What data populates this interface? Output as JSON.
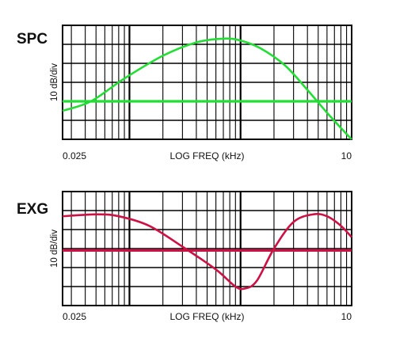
{
  "chart_data": [
    {
      "type": "line",
      "panel_label": "SPC",
      "xlabel": "LOG FREQ (kHz)",
      "ylabel": "10 dB/div",
      "x_scale": "log",
      "xlim": [
        0.025,
        10
      ],
      "x_tick_labels": [
        "0.025",
        "10"
      ],
      "ylim": [
        -20,
        40
      ],
      "y_divisions": 6,
      "grid": true,
      "line_color": "#22dd33",
      "series": [
        {
          "x": [
            0.025,
            0.045,
            0.09,
            0.2,
            0.4,
            0.7,
            1.0,
            1.5,
            2.5,
            4,
            6,
            8,
            10
          ],
          "values": [
            -5,
            0,
            12,
            24,
            31,
            33,
            32,
            28,
            19,
            6,
            -6,
            -14,
            -20
          ]
        },
        {
          "x": [
            0.025,
            10
          ],
          "values": [
            0,
            0
          ]
        }
      ]
    },
    {
      "type": "line",
      "panel_label": "EXG",
      "xlabel": "LOG FREQ (kHz)",
      "ylabel": "10 dB/div",
      "x_scale": "log",
      "xlim": [
        0.025,
        10
      ],
      "x_tick_labels": [
        "0.025",
        "10"
      ],
      "ylim": [
        -40,
        20
      ],
      "y_divisions": 6,
      "grid": true,
      "line_color": "#cc1144",
      "series": [
        {
          "x": [
            0.025,
            0.05,
            0.08,
            0.15,
            0.3,
            0.6,
            0.9,
            1.1,
            1.4,
            2.0,
            3.0,
            4.5,
            6,
            8,
            10
          ],
          "values": [
            7,
            8,
            7,
            2,
            -9,
            -21,
            -30,
            -31,
            -27,
            -10,
            4,
            8,
            7,
            2,
            -4
          ]
        },
        {
          "x": [
            0.025,
            10
          ],
          "values": [
            -11,
            -11
          ]
        }
      ]
    }
  ]
}
